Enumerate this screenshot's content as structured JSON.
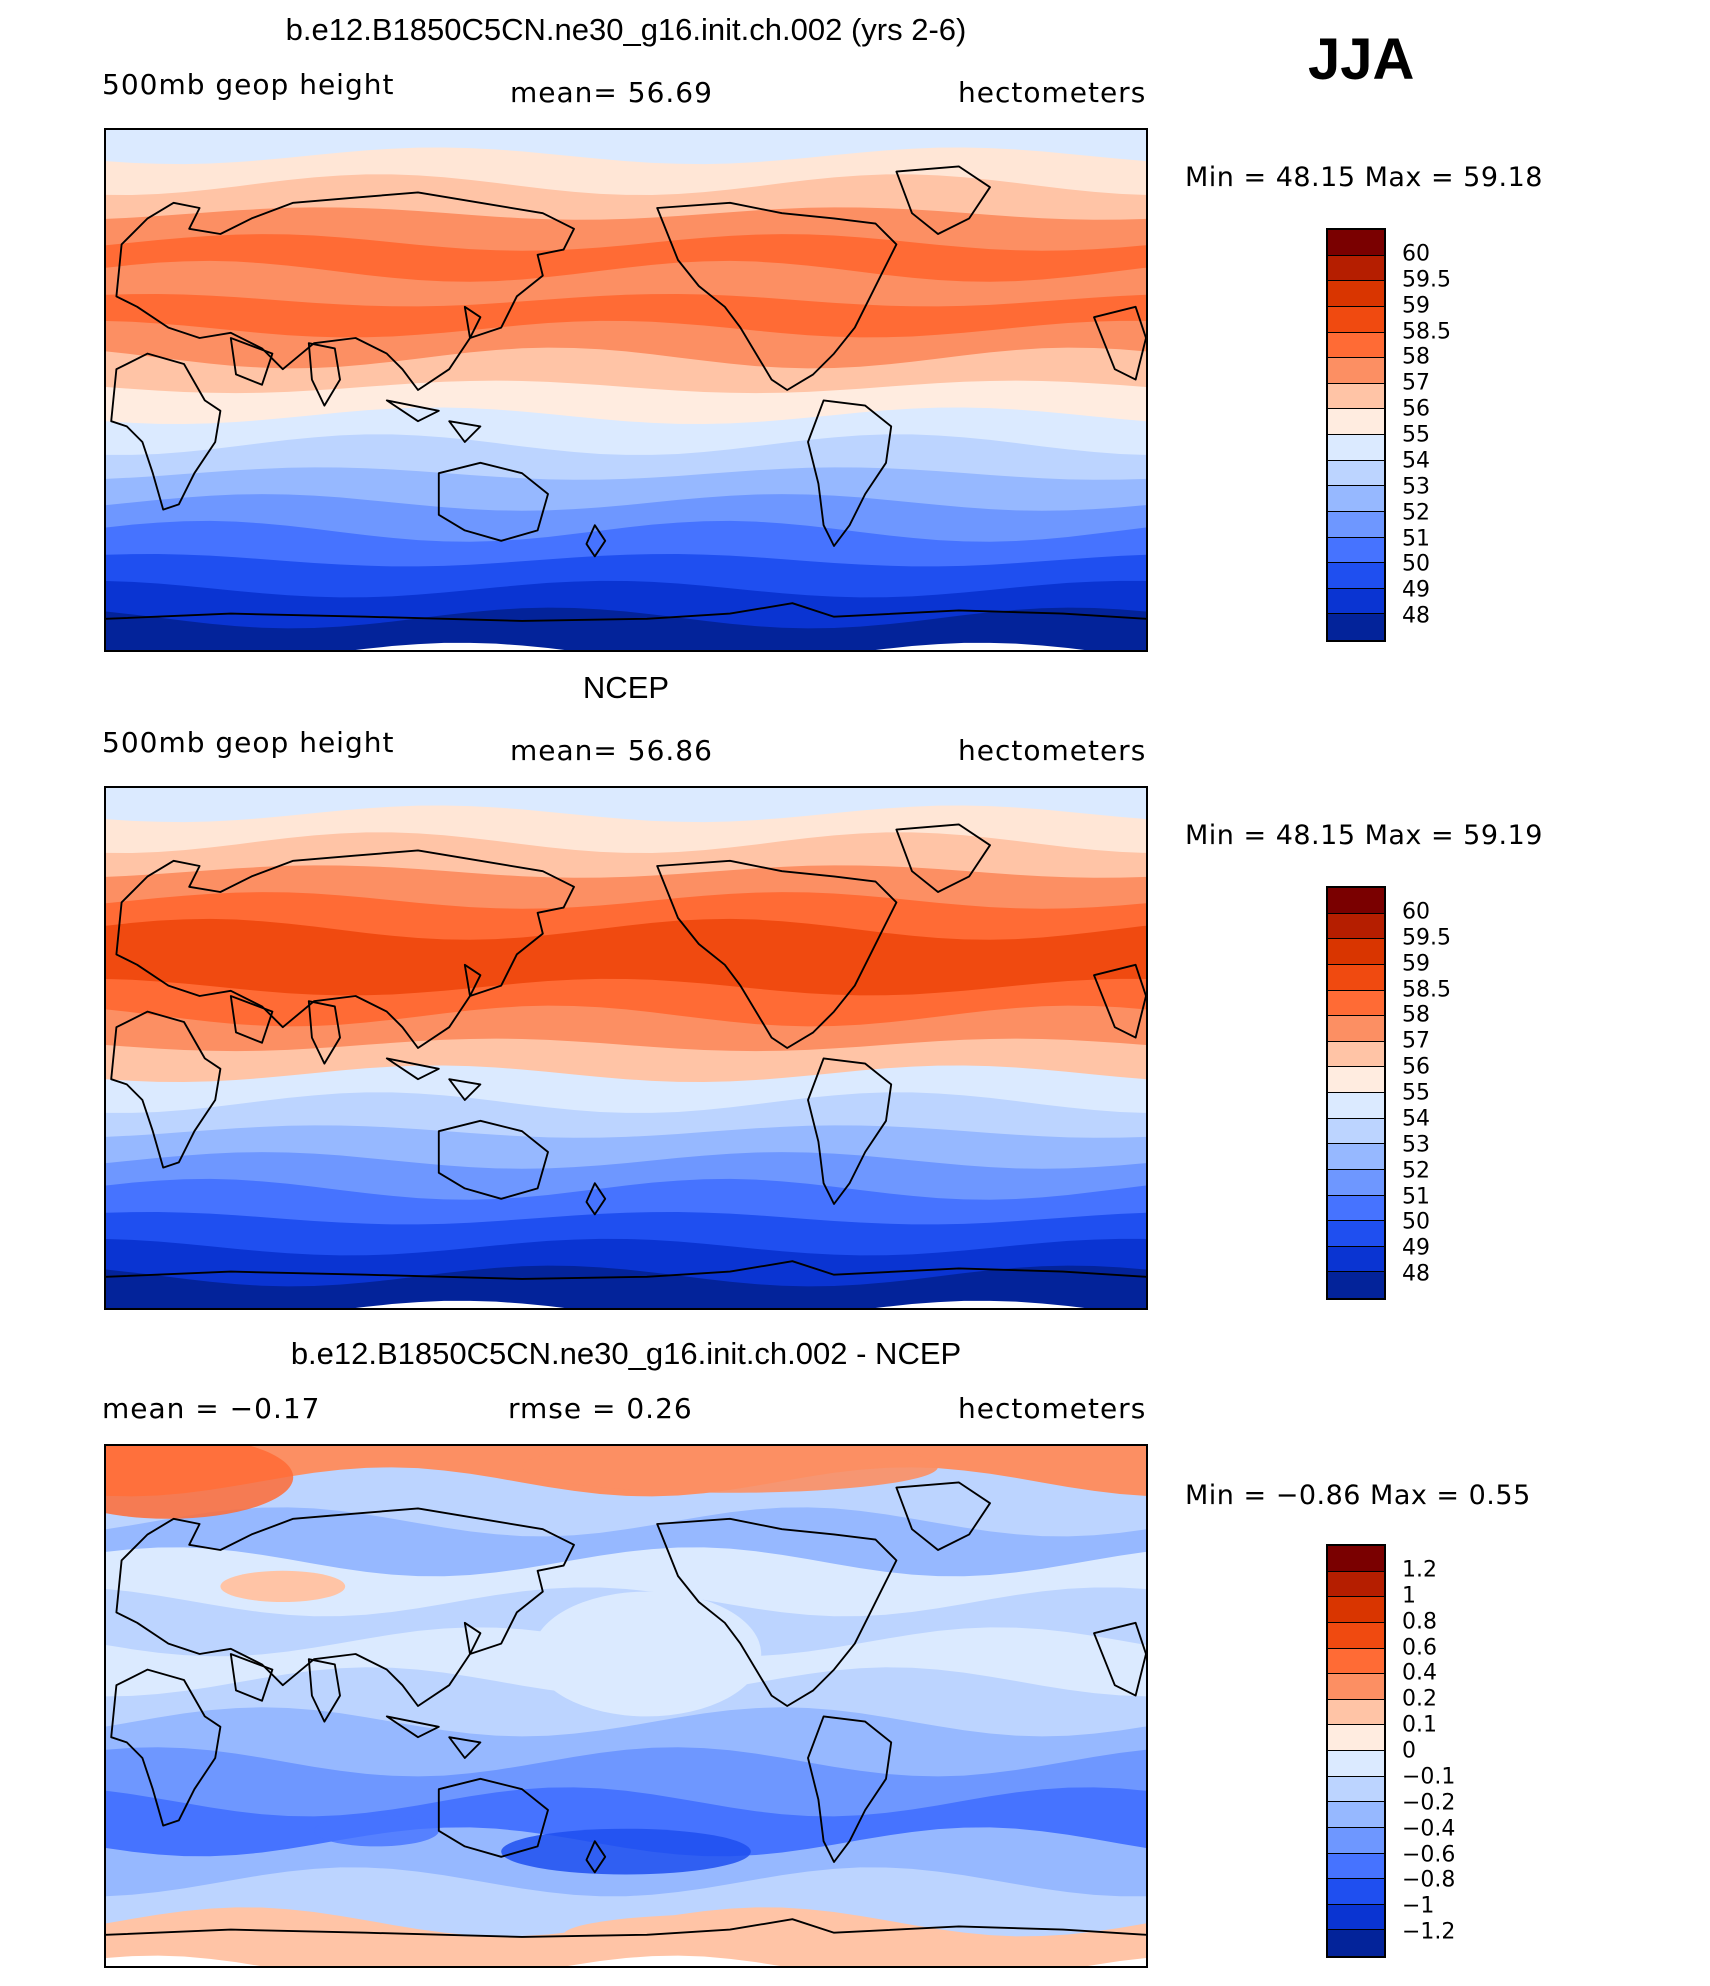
{
  "season": "JJA",
  "panels": [
    {
      "id": "model",
      "title": "b.e12.B1850C5CN.ne30_g16.init.ch.002 (yrs 2-6)",
      "left_label": "500mb  geop  height",
      "center_label": "mean=   56.69",
      "units": "hectometers",
      "min_max": "Min  =    48.15  Max  =    59.18"
    },
    {
      "id": "obs",
      "title": "NCEP",
      "left_label": "500mb  geop  height",
      "center_label": "mean=   56.86",
      "units": "hectometers",
      "min_max": "Min  =    48.15  Max  =    59.19"
    },
    {
      "id": "diff",
      "title": "b.e12.B1850C5CN.ne30_g16.init.ch.002 - NCEP",
      "left_label": "mean  =   −0.17",
      "center_label": "rmse  =    0.26",
      "units": "hectometers",
      "min_max": "Min  =   −0.86  Max  =     0.55"
    }
  ],
  "colorbars": {
    "height": {
      "labels": [
        "60",
        "59.5",
        "59",
        "58.5",
        "58",
        "57",
        "56",
        "55",
        "54",
        "53",
        "52",
        "51",
        "50",
        "49",
        "48"
      ],
      "colors": [
        "#7a0000",
        "#b51e00",
        "#d93500",
        "#f04a10",
        "#ff6b35",
        "#fc8f63",
        "#ffc4a6",
        "#ffece0",
        "#dbeaff",
        "#bcd4ff",
        "#96b8ff",
        "#6e97ff",
        "#4673ff",
        "#1f4ff0",
        "#0a34d2",
        "#03239a"
      ]
    },
    "diff": {
      "labels": [
        "1.2",
        "1",
        "0.8",
        "0.6",
        "0.4",
        "0.2",
        "0.1",
        "0",
        "−0.1",
        "−0.2",
        "−0.4",
        "−0.6",
        "−0.8",
        "−1",
        "−1.2"
      ],
      "colors": [
        "#7a0000",
        "#b51e00",
        "#d93500",
        "#f04a10",
        "#ff6b35",
        "#fc8f63",
        "#ffc4a6",
        "#ffece0",
        "#dbeaff",
        "#bcd4ff",
        "#96b8ff",
        "#6e97ff",
        "#4673ff",
        "#1f4ff0",
        "#0a34d2",
        "#03239a"
      ]
    }
  },
  "map_fields": {
    "model": [
      "#dbeaff",
      "#ffe6d6",
      "#ffc4a6",
      "#fc8f63",
      "#ff6b35",
      "#fc8f63",
      "#ff6b35",
      "#fc8f63",
      "#ffc4a6",
      "#ffece0",
      "#dbeaff",
      "#bcd4ff",
      "#96b8ff",
      "#6e97ff",
      "#4673ff",
      "#1f4ff0",
      "#0a34d2",
      "#03239a"
    ],
    "obs": [
      "#dbeaff",
      "#ffe6d6",
      "#ffc4a6",
      "#fc8f63",
      "#ff6b35",
      "#f04a10",
      "#f04a10",
      "#ff6b35",
      "#fc8f63",
      "#ffc4a6",
      "#dbeaff",
      "#bcd4ff",
      "#96b8ff",
      "#6e97ff",
      "#4673ff",
      "#1f4ff0",
      "#0a34d2",
      "#03239a"
    ],
    "diff": [
      "#fc8f63",
      "#bcd4ff",
      "#96b8ff",
      "#dbeaff",
      "#bcd4ff",
      "#dbeaff",
      "#bcd4ff",
      "#96b8ff",
      "#6e97ff",
      "#4673ff",
      "#96b8ff",
      "#bcd4ff",
      "#ffc4a6"
    ]
  }
}
